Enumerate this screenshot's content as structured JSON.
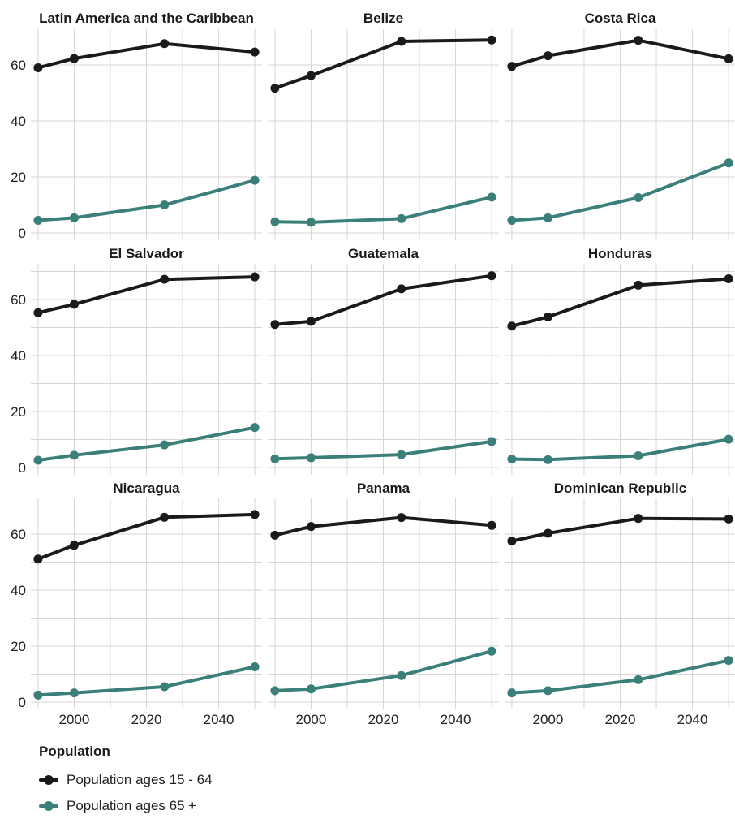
{
  "chart_data": {
    "type": "line",
    "facet": true,
    "x": [
      1990,
      2000,
      2025,
      2050
    ],
    "x_ticks": [
      2000,
      2020,
      2040
    ],
    "xlim": [
      1988,
      2052
    ],
    "y_ticks": [
      0,
      20,
      40,
      60
    ],
    "ylim": [
      0,
      72
    ],
    "grid": true,
    "legend": {
      "title": "Population",
      "position": "bottom-left",
      "entries": [
        "Population ages 15 - 64",
        "Population ages 65 +"
      ]
    },
    "colors": {
      "ages_15_64": "#1a1a1a",
      "ages_65_plus": "#3b7f7a"
    },
    "panels": [
      {
        "title": "Latin America and the Caribbean",
        "series": [
          {
            "name": "Population ages 15 - 64",
            "values": [
              59.0,
              62.3,
              67.6,
              64.6
            ]
          },
          {
            "name": "Population ages 65 +",
            "values": [
              4.5,
              5.4,
              10.0,
              18.8
            ]
          }
        ]
      },
      {
        "title": "Belize",
        "series": [
          {
            "name": "Population ages 15 - 64",
            "values": [
              51.7,
              56.2,
              68.4,
              68.9
            ]
          },
          {
            "name": "Population ages 65 +",
            "values": [
              4.0,
              3.8,
              5.1,
              12.8
            ]
          }
        ]
      },
      {
        "title": "Costa Rica",
        "series": [
          {
            "name": "Population ages 15 - 64",
            "values": [
              59.5,
              63.3,
              68.8,
              62.2
            ]
          },
          {
            "name": "Population ages 65 +",
            "values": [
              4.5,
              5.4,
              12.6,
              25.0
            ]
          }
        ]
      },
      {
        "title": "El Salvador",
        "series": [
          {
            "name": "Population ages 15 - 64",
            "values": [
              55.3,
              58.3,
              67.2,
              68.1
            ]
          },
          {
            "name": "Population ages 65 +",
            "values": [
              2.6,
              4.4,
              8.1,
              14.3
            ]
          }
        ]
      },
      {
        "title": "Guatemala",
        "series": [
          {
            "name": "Population ages 15 - 64",
            "values": [
              51.1,
              52.2,
              63.8,
              68.5
            ]
          },
          {
            "name": "Population ages 65 +",
            "values": [
              3.1,
              3.5,
              4.6,
              9.3
            ]
          }
        ]
      },
      {
        "title": "Honduras",
        "series": [
          {
            "name": "Population ages 15 - 64",
            "values": [
              50.5,
              53.8,
              65.1,
              67.4
            ]
          },
          {
            "name": "Population ages 65 +",
            "values": [
              3.0,
              2.8,
              4.2,
              10.1
            ]
          }
        ]
      },
      {
        "title": "Nicaragua",
        "series": [
          {
            "name": "Population ages 15 - 64",
            "values": [
              51.1,
              56.0,
              66.0,
              67.0
            ]
          },
          {
            "name": "Population ages 65 +",
            "values": [
              2.5,
              3.3,
              5.5,
              12.6
            ]
          }
        ]
      },
      {
        "title": "Panama",
        "series": [
          {
            "name": "Population ages 15 - 64",
            "values": [
              59.6,
              62.7,
              65.9,
              63.1
            ]
          },
          {
            "name": "Population ages 65 +",
            "values": [
              4.1,
              4.7,
              9.5,
              18.2
            ]
          }
        ]
      },
      {
        "title": "Dominican Republic",
        "series": [
          {
            "name": "Population ages 15 - 64",
            "values": [
              57.5,
              60.3,
              65.6,
              65.4
            ]
          },
          {
            "name": "Population ages 65 +",
            "values": [
              3.3,
              4.1,
              8.0,
              14.9
            ]
          }
        ]
      }
    ]
  }
}
